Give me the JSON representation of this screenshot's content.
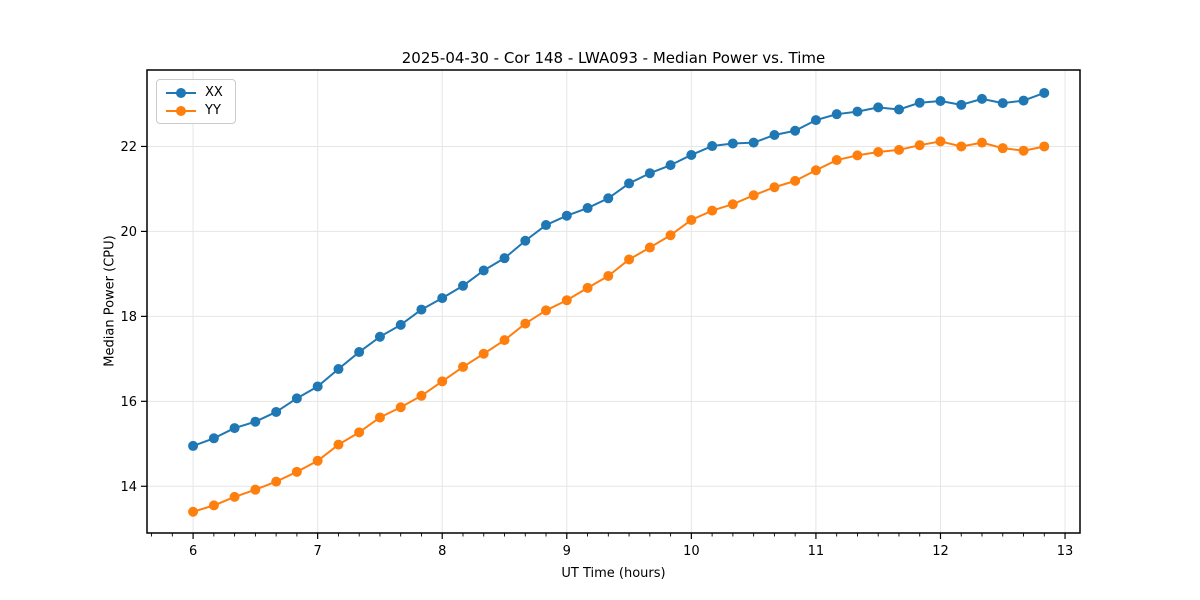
{
  "chart_data": {
    "type": "line",
    "title": "2025-04-30 - Cor 148 - LWA093 - Median Power vs. Time",
    "xlabel": "UT Time (hours)",
    "ylabel": "Median Power (CPU)",
    "xlim": [
      5.63,
      13.12
    ],
    "ylim": [
      12.9,
      23.8
    ],
    "xticks": [
      6,
      7,
      8,
      9,
      10,
      11,
      12,
      13
    ],
    "yticks": [
      14,
      16,
      18,
      20,
      22
    ],
    "minor_xtick_interval": 0.1667,
    "grid": true,
    "legend_position": "upper-left",
    "x": [
      6,
      6.167,
      6.333,
      6.5,
      6.667,
      6.833,
      7,
      7.167,
      7.333,
      7.5,
      7.667,
      7.833,
      8,
      8.167,
      8.333,
      8.5,
      8.667,
      8.833,
      9,
      9.167,
      9.333,
      9.5,
      9.667,
      9.833,
      10,
      10.167,
      10.333,
      10.5,
      10.667,
      10.833,
      11,
      11.167,
      11.333,
      11.5,
      11.667,
      11.833,
      12,
      12.167,
      12.333,
      12.5,
      12.667,
      12.833
    ],
    "series": [
      {
        "name": "XX",
        "color": "#1f77b4",
        "values": [
          14.95,
          15.13,
          15.37,
          15.52,
          15.75,
          16.07,
          16.35,
          16.76,
          17.16,
          17.52,
          17.8,
          18.16,
          18.43,
          18.72,
          19.08,
          19.37,
          19.78,
          20.15,
          20.37,
          20.55,
          20.78,
          21.13,
          21.37,
          21.56,
          21.8,
          22.01,
          22.07,
          22.09,
          22.27,
          22.37,
          22.62,
          22.76,
          22.82,
          22.92,
          22.87,
          23.03,
          23.07,
          22.98,
          23.12,
          23.02,
          23.08,
          23.26
        ]
      },
      {
        "name": "YY",
        "color": "#ff7f0e",
        "values": [
          13.4,
          13.55,
          13.75,
          13.92,
          14.11,
          14.34,
          14.6,
          14.98,
          15.27,
          15.62,
          15.86,
          16.13,
          16.47,
          16.81,
          17.12,
          17.44,
          17.83,
          18.14,
          18.38,
          18.67,
          18.95,
          19.34,
          19.62,
          19.91,
          20.27,
          20.49,
          20.64,
          20.85,
          21.04,
          21.19,
          21.44,
          21.68,
          21.79,
          21.87,
          21.92,
          22.03,
          22.12,
          22.0,
          22.09,
          21.96,
          21.9,
          22.0
        ]
      }
    ]
  },
  "style": {
    "background": "#ffffff",
    "grid_color": "#e6e6e6",
    "spine_color": "#000000",
    "tick_color": "#000000",
    "text_color": "#000000",
    "legend_border": "#cccccc"
  }
}
